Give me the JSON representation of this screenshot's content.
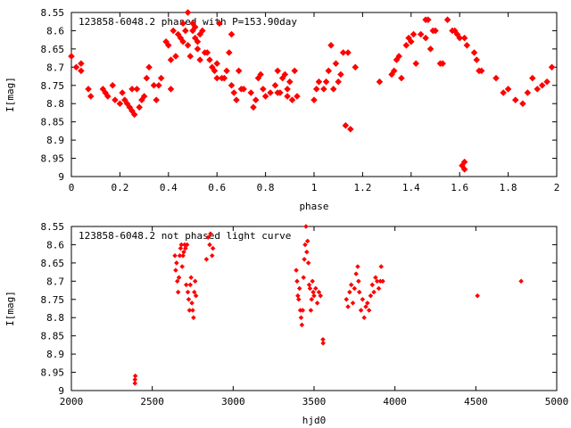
{
  "chart_data": [
    {
      "type": "scatter",
      "title": "123858-6048.2 phased with P=153.90day",
      "xlabel": "phase",
      "ylabel": "I[mag]",
      "xlim": [
        0,
        2
      ],
      "ylim": [
        8.55,
        9
      ],
      "y_inverted": true,
      "x_ticks": [
        "0",
        "0.2",
        "0.4",
        "0.6",
        "0.8",
        "1",
        "1.2",
        "1.4",
        "1.6",
        "1.8",
        "2"
      ],
      "y_ticks": [
        "8.55",
        "8.6",
        "8.65",
        "8.7",
        "8.75",
        "8.8",
        "8.85",
        "8.9",
        "8.95",
        "9"
      ],
      "grid": false,
      "marker_color": "#ff0000",
      "series": [
        {
          "points": [
            [
              0.0,
              8.67
            ],
            [
              0.02,
              8.7
            ],
            [
              0.04,
              8.69
            ],
            [
              0.04,
              8.71
            ],
            [
              0.07,
              8.76
            ],
            [
              0.08,
              8.78
            ],
            [
              0.13,
              8.76
            ],
            [
              0.14,
              8.77
            ],
            [
              0.15,
              8.78
            ],
            [
              0.17,
              8.75
            ],
            [
              0.18,
              8.79
            ],
            [
              0.2,
              8.8
            ],
            [
              0.21,
              8.77
            ],
            [
              0.22,
              8.79
            ],
            [
              0.23,
              8.8
            ],
            [
              0.24,
              8.81
            ],
            [
              0.25,
              8.82
            ],
            [
              0.25,
              8.76
            ],
            [
              0.26,
              8.83
            ],
            [
              0.27,
              8.76
            ],
            [
              0.28,
              8.81
            ],
            [
              0.29,
              8.79
            ],
            [
              0.3,
              8.78
            ],
            [
              0.31,
              8.73
            ],
            [
              0.32,
              8.7
            ],
            [
              0.34,
              8.75
            ],
            [
              0.35,
              8.79
            ],
            [
              0.36,
              8.75
            ],
            [
              0.37,
              8.73
            ],
            [
              0.39,
              8.63
            ],
            [
              0.4,
              8.64
            ],
            [
              0.41,
              8.68
            ],
            [
              0.41,
              8.76
            ],
            [
              0.42,
              8.6
            ],
            [
              0.43,
              8.67
            ],
            [
              0.44,
              8.61
            ],
            [
              0.45,
              8.62
            ],
            [
              0.46,
              8.63
            ],
            [
              0.46,
              8.58
            ],
            [
              0.47,
              8.6
            ],
            [
              0.48,
              8.55
            ],
            [
              0.48,
              8.64
            ],
            [
              0.49,
              8.67
            ],
            [
              0.5,
              8.6
            ],
            [
              0.5,
              8.58
            ],
            [
              0.51,
              8.59
            ],
            [
              0.51,
              8.62
            ],
            [
              0.52,
              8.65
            ],
            [
              0.52,
              8.63
            ],
            [
              0.53,
              8.61
            ],
            [
              0.53,
              8.68
            ],
            [
              0.54,
              8.6
            ],
            [
              0.55,
              8.66
            ],
            [
              0.56,
              8.66
            ],
            [
              0.57,
              8.68
            ],
            [
              0.58,
              8.7
            ],
            [
              0.59,
              8.71
            ],
            [
              0.6,
              8.69
            ],
            [
              0.6,
              8.73
            ],
            [
              0.61,
              8.58
            ],
            [
              0.62,
              8.73
            ],
            [
              0.63,
              8.73
            ],
            [
              0.64,
              8.71
            ],
            [
              0.65,
              8.66
            ],
            [
              0.66,
              8.75
            ],
            [
              0.66,
              8.61
            ],
            [
              0.67,
              8.77
            ],
            [
              0.68,
              8.79
            ],
            [
              0.69,
              8.71
            ],
            [
              0.7,
              8.76
            ],
            [
              0.71,
              8.76
            ],
            [
              0.74,
              8.77
            ],
            [
              0.75,
              8.81
            ],
            [
              0.76,
              8.79
            ],
            [
              0.77,
              8.73
            ],
            [
              0.78,
              8.72
            ],
            [
              0.79,
              8.76
            ],
            [
              0.8,
              8.78
            ],
            [
              0.82,
              8.77
            ],
            [
              0.84,
              8.75
            ],
            [
              0.85,
              8.71
            ],
            [
              0.85,
              8.77
            ],
            [
              0.86,
              8.77
            ],
            [
              0.87,
              8.73
            ],
            [
              0.88,
              8.72
            ],
            [
              0.89,
              8.76
            ],
            [
              0.89,
              8.78
            ],
            [
              0.9,
              8.74
            ],
            [
              0.91,
              8.79
            ],
            [
              0.92,
              8.71
            ],
            [
              0.93,
              8.78
            ],
            [
              1.0,
              8.79
            ],
            [
              1.01,
              8.76
            ],
            [
              1.02,
              8.74
            ],
            [
              1.04,
              8.76
            ],
            [
              1.05,
              8.74
            ],
            [
              1.06,
              8.71
            ],
            [
              1.07,
              8.64
            ],
            [
              1.08,
              8.76
            ],
            [
              1.09,
              8.69
            ],
            [
              1.1,
              8.74
            ],
            [
              1.11,
              8.72
            ],
            [
              1.12,
              8.66
            ],
            [
              1.13,
              8.86
            ],
            [
              1.14,
              8.66
            ],
            [
              1.15,
              8.87
            ],
            [
              1.17,
              8.7
            ],
            [
              1.27,
              8.74
            ],
            [
              1.32,
              8.72
            ],
            [
              1.33,
              8.71
            ],
            [
              1.34,
              8.68
            ],
            [
              1.35,
              8.67
            ],
            [
              1.36,
              8.73
            ],
            [
              1.38,
              8.64
            ],
            [
              1.39,
              8.62
            ],
            [
              1.4,
              8.63
            ],
            [
              1.41,
              8.61
            ],
            [
              1.42,
              8.69
            ],
            [
              1.44,
              8.61
            ],
            [
              1.46,
              8.62
            ],
            [
              1.46,
              8.57
            ],
            [
              1.47,
              8.57
            ],
            [
              1.48,
              8.65
            ],
            [
              1.49,
              8.6
            ],
            [
              1.5,
              8.6
            ],
            [
              1.52,
              8.69
            ],
            [
              1.53,
              8.69
            ],
            [
              1.55,
              8.57
            ],
            [
              1.57,
              8.6
            ],
            [
              1.58,
              8.6
            ],
            [
              1.59,
              8.61
            ],
            [
              1.6,
              8.62
            ],
            [
              1.61,
              8.97
            ],
            [
              1.62,
              8.98
            ],
            [
              1.62,
              8.62
            ],
            [
              1.62,
              8.96
            ],
            [
              1.63,
              8.64
            ],
            [
              1.66,
              8.66
            ],
            [
              1.67,
              8.68
            ],
            [
              1.68,
              8.71
            ],
            [
              1.69,
              8.71
            ],
            [
              1.75,
              8.73
            ],
            [
              1.78,
              8.77
            ],
            [
              1.8,
              8.76
            ],
            [
              1.83,
              8.79
            ],
            [
              1.86,
              8.8
            ],
            [
              1.88,
              8.77
            ],
            [
              1.9,
              8.73
            ],
            [
              1.92,
              8.76
            ],
            [
              1.94,
              8.75
            ],
            [
              1.96,
              8.74
            ],
            [
              1.98,
              8.7
            ]
          ]
        }
      ]
    },
    {
      "type": "scatter",
      "title": "123858-6048.2 not phased light curve",
      "xlabel": "hjd0",
      "ylabel": "I[mag]",
      "xlim": [
        2000,
        5000
      ],
      "ylim": [
        8.55,
        9
      ],
      "y_inverted": true,
      "x_ticks": [
        "2000",
        "2500",
        "3000",
        "3500",
        "4000",
        "4500",
        "5000"
      ],
      "y_ticks": [
        "8.55",
        "8.6",
        "8.65",
        "8.7",
        "8.75",
        "8.8",
        "8.85",
        "8.9",
        "8.95",
        "9"
      ],
      "grid": false,
      "marker_color": "#ff0000",
      "series": [
        {
          "points": [
            [
              2393,
              8.97
            ],
            [
              2393,
              8.98
            ],
            [
              2395,
              8.96
            ],
            [
              2640,
              8.63
            ],
            [
              2645,
              8.67
            ],
            [
              2650,
              8.65
            ],
            [
              2655,
              8.7
            ],
            [
              2660,
              8.73
            ],
            [
              2665,
              8.69
            ],
            [
              2670,
              8.63
            ],
            [
              2675,
              8.61
            ],
            [
              2680,
              8.6
            ],
            [
              2685,
              8.66
            ],
            [
              2690,
              8.63
            ],
            [
              2695,
              8.62
            ],
            [
              2700,
              8.6
            ],
            [
              2705,
              8.61
            ],
            [
              2710,
              8.71
            ],
            [
              2715,
              8.6
            ],
            [
              2720,
              8.73
            ],
            [
              2725,
              8.75
            ],
            [
              2730,
              8.78
            ],
            [
              2735,
              8.71
            ],
            [
              2740,
              8.69
            ],
            [
              2745,
              8.76
            ],
            [
              2750,
              8.78
            ],
            [
              2755,
              8.8
            ],
            [
              2760,
              8.73
            ],
            [
              2765,
              8.7
            ],
            [
              2770,
              8.74
            ],
            [
              2835,
              8.64
            ],
            [
              2845,
              8.58
            ],
            [
              2855,
              8.6
            ],
            [
              2860,
              8.57
            ],
            [
              2870,
              8.63
            ],
            [
              2875,
              8.61
            ],
            [
              3390,
              8.67
            ],
            [
              3395,
              8.7
            ],
            [
              3400,
              8.74
            ],
            [
              3405,
              8.75
            ],
            [
              3410,
              8.72
            ],
            [
              3415,
              8.78
            ],
            [
              3420,
              8.8
            ],
            [
              3425,
              8.82
            ],
            [
              3430,
              8.78
            ],
            [
              3435,
              8.69
            ],
            [
              3440,
              8.64
            ],
            [
              3445,
              8.6
            ],
            [
              3450,
              8.55
            ],
            [
              3455,
              8.62
            ],
            [
              3460,
              8.59
            ],
            [
              3465,
              8.65
            ],
            [
              3470,
              8.71
            ],
            [
              3475,
              8.72
            ],
            [
              3480,
              8.78
            ],
            [
              3485,
              8.75
            ],
            [
              3490,
              8.7
            ],
            [
              3495,
              8.73
            ],
            [
              3500,
              8.74
            ],
            [
              3510,
              8.72
            ],
            [
              3520,
              8.76
            ],
            [
              3530,
              8.73
            ],
            [
              3540,
              8.74
            ],
            [
              3555,
              8.86
            ],
            [
              3556,
              8.87
            ],
            [
              3700,
              8.75
            ],
            [
              3710,
              8.77
            ],
            [
              3720,
              8.73
            ],
            [
              3730,
              8.71
            ],
            [
              3740,
              8.76
            ],
            [
              3750,
              8.72
            ],
            [
              3760,
              8.68
            ],
            [
              3770,
              8.66
            ],
            [
              3775,
              8.7
            ],
            [
              3780,
              8.73
            ],
            [
              3790,
              8.78
            ],
            [
              3800,
              8.75
            ],
            [
              3810,
              8.8
            ],
            [
              3820,
              8.77
            ],
            [
              3830,
              8.76
            ],
            [
              3840,
              8.78
            ],
            [
              3850,
              8.74
            ],
            [
              3860,
              8.71
            ],
            [
              3870,
              8.73
            ],
            [
              3880,
              8.69
            ],
            [
              3890,
              8.7
            ],
            [
              3900,
              8.72
            ],
            [
              3910,
              8.7
            ],
            [
              3915,
              8.66
            ],
            [
              3925,
              8.7
            ],
            [
              4510,
              8.74
            ],
            [
              4780,
              8.7
            ]
          ]
        }
      ]
    }
  ]
}
